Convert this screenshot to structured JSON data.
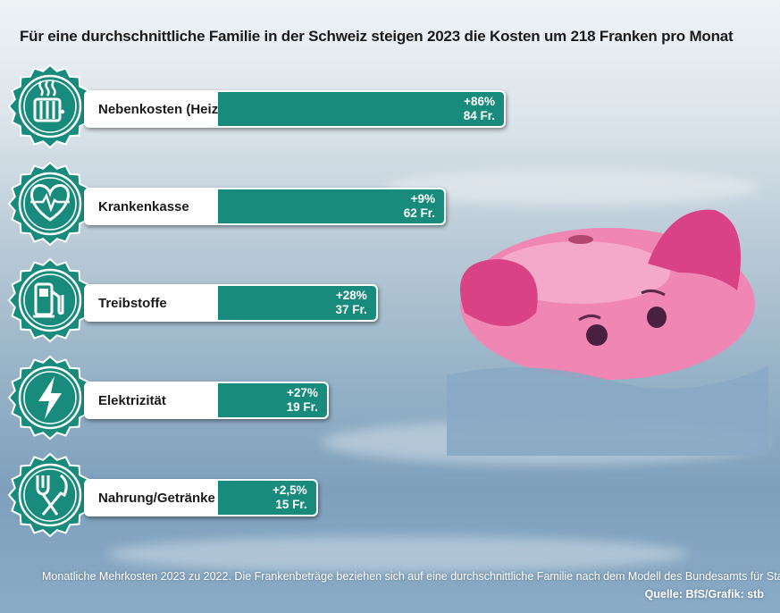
{
  "title": "Für eine durchschnittliche Familie in der Schweiz steigen 2023 die Kosten um 218 Franken pro Monat",
  "footer_note": "Monatliche Mehrkosten 2023 zu 2022. Die Frankenbeträge beziehen sich auf eine durchschnittliche Familie nach dem Modell des Bundesamts für Statisik.",
  "source": "Quelle: BfS/Grafik: stb",
  "colors": {
    "accent": "#198b7c",
    "label_bg": "#ffffff",
    "piggy": "#e6619a"
  },
  "chart_data": {
    "type": "bar",
    "orientation": "horizontal",
    "title": "Für eine durchschnittliche Familie in der Schweiz steigen 2023 die Kosten um 218 Franken pro Monat",
    "categories": [
      "Nebenkosten (Heizöl)",
      "Krankenkasse",
      "Treibstoffe",
      "Elektrizität",
      "Nahrung/Getränke"
    ],
    "values": [
      84,
      62,
      37,
      19,
      15
    ],
    "percent_labels": [
      "+86%",
      "+9%",
      "+28%",
      "+27%",
      "+2,5%"
    ],
    "value_labels": [
      "84 Fr.",
      "62 Fr.",
      "37 Fr.",
      "19 Fr.",
      "15 Fr."
    ],
    "icons": [
      "radiator-icon",
      "heart-pulse-icon",
      "fuel-pump-icon",
      "lightning-icon",
      "fork-knife-icon"
    ],
    "xlim": [
      0,
      84
    ],
    "grid": false
  }
}
